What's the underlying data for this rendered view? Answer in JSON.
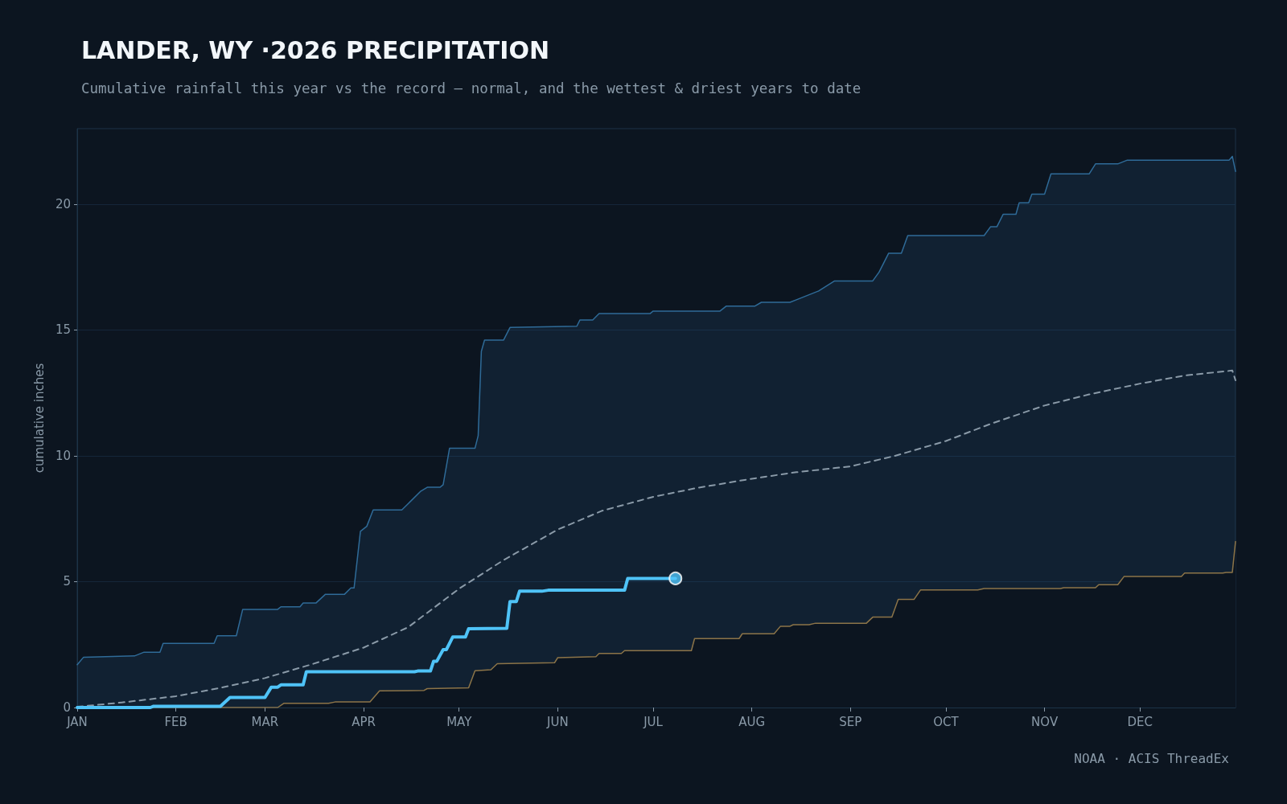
{
  "chart_data": {
    "type": "line",
    "title": "LANDER, WY ·2026 PRECIPITATION",
    "subtitle": "Cumulative rainfall this year vs the record — normal, and the wettest & driest years to date",
    "ylabel": "cumulative inches",
    "annotations": [
      "NOAA · ACIS ThreadEx"
    ],
    "xlim": [
      "--01-01",
      "--12-31"
    ],
    "xticks": [
      {
        "value": "--01-01",
        "label": "JAN"
      },
      {
        "value": "--02-01",
        "label": "FEB"
      },
      {
        "value": "--03-01",
        "label": "MAR"
      },
      {
        "value": "--04-01",
        "label": "APR"
      },
      {
        "value": "--05-01",
        "label": "MAY"
      },
      {
        "value": "--06-01",
        "label": "JUN"
      },
      {
        "value": "--07-01",
        "label": "JUL"
      },
      {
        "value": "--08-01",
        "label": "AUG"
      },
      {
        "value": "--09-01",
        "label": "SEP"
      },
      {
        "value": "--10-01",
        "label": "OCT"
      },
      {
        "value": "--11-01",
        "label": "NOV"
      },
      {
        "value": "--12-01",
        "label": "DEC"
      }
    ],
    "ylim": [
      0,
      23
    ],
    "yticks": [
      0,
      5,
      10,
      15,
      20
    ],
    "grid": "y",
    "series": [
      {
        "type": "area",
        "color": "#2f6b98",
        "x": [
          "--01-01",
          "--01-03",
          "--01-19",
          "--01-22",
          "--01-27",
          "--01-28",
          "--02-13",
          "--02-14",
          "--02-20",
          "--02-22",
          "--03-05",
          "--03-06",
          "--03-12",
          "--03-13",
          "--03-17",
          "--03-20",
          "--03-26",
          "--03-28",
          "--03-29",
          "--03-31",
          "--04-02",
          "--04-04",
          "--04-13",
          "--04-15",
          "--04-19",
          "--04-21",
          "--04-25",
          "--04-26",
          "--04-28",
          "--05-06",
          "--05-07",
          "--05-08",
          "--05-09",
          "--05-15",
          "--05-17",
          "--06-07",
          "--06-08",
          "--06-12",
          "--06-14",
          "--06-30",
          "--07-01",
          "--07-22",
          "--07-24",
          "--08-02",
          "--08-04",
          "--08-13",
          "--08-15",
          "--08-22",
          "--08-27",
          "--09-08",
          "--09-10",
          "--09-13",
          "--09-17",
          "--09-19",
          "--10-13",
          "--10-15",
          "--10-17",
          "--10-19",
          "--10-23",
          "--10-24",
          "--10-27",
          "--10-28",
          "--11-01",
          "--11-03",
          "--11-15",
          "--11-17",
          "--11-24",
          "--11-27",
          "--12-29",
          "--12-30",
          "--12-31"
        ],
        "values": [
          1.7,
          2.0,
          2.05,
          2.2,
          2.2,
          2.55,
          2.55,
          2.85,
          2.85,
          3.9,
          3.9,
          4.0,
          4.0,
          4.15,
          4.15,
          4.5,
          4.5,
          4.75,
          4.75,
          7.0,
          7.2,
          7.85,
          7.85,
          8.1,
          8.6,
          8.75,
          8.75,
          8.85,
          10.3,
          10.3,
          10.8,
          14.15,
          14.6,
          14.6,
          15.1,
          15.15,
          15.4,
          15.4,
          15.65,
          15.65,
          15.75,
          15.75,
          15.95,
          15.95,
          16.1,
          16.1,
          16.2,
          16.55,
          16.95,
          16.95,
          17.3,
          18.05,
          18.05,
          18.75,
          18.75,
          19.1,
          19.1,
          19.6,
          19.6,
          20.05,
          20.05,
          20.4,
          20.4,
          21.2,
          21.2,
          21.6,
          21.6,
          21.75,
          21.75,
          21.9,
          21.3
        ]
      },
      {
        "type": "area",
        "color": "#8c7448",
        "x": [
          "--01-01",
          "--03-05",
          "--03-07",
          "--03-21",
          "--03-23",
          "--04-03",
          "--04-06",
          "--04-20",
          "--04-21",
          "--05-04",
          "--05-06",
          "--05-11",
          "--05-13",
          "--05-31",
          "--06-01",
          "--06-13",
          "--06-14",
          "--06-21",
          "--06-22",
          "--07-13",
          "--07-14",
          "--07-28",
          "--07-29",
          "--08-08",
          "--08-10",
          "--08-13",
          "--08-14",
          "--08-19",
          "--08-21",
          "--09-06",
          "--09-08",
          "--09-14",
          "--09-16",
          "--09-21",
          "--09-23",
          "--10-11",
          "--10-13",
          "--11-06",
          "--11-07",
          "--11-17",
          "--11-18",
          "--11-24",
          "--11-26",
          "--12-14",
          "--12-15",
          "--12-27",
          "--12-28",
          "--12-30",
          "--12-31"
        ],
        "values": [
          0,
          0,
          0.17,
          0.17,
          0.22,
          0.22,
          0.66,
          0.68,
          0.75,
          0.78,
          1.46,
          1.5,
          1.74,
          1.78,
          1.98,
          2.02,
          2.15,
          2.15,
          2.26,
          2.26,
          2.74,
          2.74,
          2.93,
          2.93,
          3.23,
          3.23,
          3.29,
          3.29,
          3.35,
          3.35,
          3.59,
          3.59,
          4.3,
          4.3,
          4.67,
          4.67,
          4.73,
          4.73,
          4.76,
          4.76,
          4.88,
          4.88,
          5.21,
          5.21,
          5.34,
          5.34,
          5.37,
          5.37,
          6.6
        ]
      },
      {
        "color": "#8a9aa8",
        "line_style": "dashed",
        "x": [
          "--01-01",
          "--01-15",
          "--02-01",
          "--02-15",
          "--03-01",
          "--03-15",
          "--04-01",
          "--04-15",
          "--05-01",
          "--05-15",
          "--06-01",
          "--06-15",
          "--07-01",
          "--07-15",
          "--08-01",
          "--08-15",
          "--09-01",
          "--09-15",
          "--10-01",
          "--10-15",
          "--11-01",
          "--11-15",
          "--12-01",
          "--12-15",
          "--12-30",
          "--12-31"
        ],
        "values": [
          0.03,
          0.2,
          0.45,
          0.78,
          1.17,
          1.69,
          2.38,
          3.19,
          4.72,
          5.86,
          7.07,
          7.82,
          8.37,
          8.73,
          9.09,
          9.35,
          9.58,
          10.0,
          10.59,
          11.27,
          12.0,
          12.44,
          12.87,
          13.19,
          13.39,
          13.0
        ]
      },
      {
        "color": "#4fc3f7",
        "x": [
          "--01-01",
          "--01-24",
          "--01-25",
          "--02-15",
          "--02-18",
          "--03-01",
          "--03-03",
          "--03-05",
          "--03-06",
          "--03-13",
          "--03-14",
          "--04-17",
          "--04-18",
          "--04-22",
          "--04-23",
          "--04-24",
          "--04-26",
          "--04-27",
          "--04-29",
          "--05-03",
          "--05-04",
          "--05-16",
          "--05-17",
          "--05-19",
          "--05-20",
          "--05-27",
          "--05-29",
          "--06-22",
          "--06-23",
          "--07-08"
        ],
        "values": [
          0,
          0,
          0.05,
          0.05,
          0.4,
          0.4,
          0.81,
          0.81,
          0.9,
          0.9,
          1.42,
          1.42,
          1.45,
          1.45,
          1.84,
          1.84,
          2.3,
          2.3,
          2.8,
          2.8,
          3.13,
          3.15,
          4.21,
          4.21,
          4.62,
          4.62,
          4.66,
          4.66,
          5.13,
          5.13
        ]
      },
      {
        "type": "scatter",
        "color": "#4fc3f7",
        "marker": "circle",
        "x": [
          "--07-08"
        ],
        "values": [
          5.13
        ]
      }
    ]
  }
}
